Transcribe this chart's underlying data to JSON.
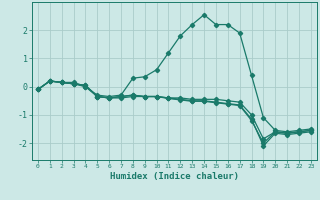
{
  "xlabel": "Humidex (Indice chaleur)",
  "ylabel": "",
  "xlim": [
    -0.5,
    23.5
  ],
  "ylim": [
    -2.6,
    3.0
  ],
  "background_color": "#cce8e6",
  "grid_color": "#aaccca",
  "line_color": "#1a7a6a",
  "lines": [
    {
      "x": [
        0,
        1,
        2,
        3,
        4,
        5,
        6,
        7,
        8,
        9,
        10,
        11,
        12,
        13,
        14,
        15,
        16,
        17,
        18,
        19,
        20,
        21,
        22,
        23
      ],
      "y": [
        -0.1,
        0.2,
        0.15,
        0.1,
        0.0,
        -0.3,
        -0.35,
        -0.3,
        0.3,
        0.35,
        0.6,
        1.2,
        1.8,
        2.2,
        2.55,
        2.2,
        2.2,
        1.9,
        0.4,
        -1.1,
        -1.55,
        -1.6,
        -1.55,
        -1.5
      ]
    },
    {
      "x": [
        0,
        1,
        2,
        3,
        4,
        5,
        6,
        7,
        8,
        9,
        10,
        11,
        12,
        13,
        14,
        15,
        16,
        17,
        18,
        19,
        20,
        21,
        22,
        23
      ],
      "y": [
        -0.1,
        0.2,
        0.15,
        0.1,
        0.05,
        -0.35,
        -0.4,
        -0.35,
        -0.3,
        -0.35,
        -0.35,
        -0.4,
        -0.45,
        -0.5,
        -0.5,
        -0.55,
        -0.6,
        -0.65,
        -1.15,
        -2.1,
        -1.65,
        -1.7,
        -1.65,
        -1.6
      ]
    },
    {
      "x": [
        0,
        1,
        2,
        3,
        4,
        5,
        6,
        7,
        8,
        9,
        10,
        11,
        12,
        13,
        14,
        15,
        16,
        17,
        18,
        19,
        20,
        21,
        22,
        23
      ],
      "y": [
        -0.1,
        0.2,
        0.15,
        0.1,
        0.05,
        -0.35,
        -0.4,
        -0.35,
        -0.3,
        -0.35,
        -0.35,
        -0.42,
        -0.47,
        -0.52,
        -0.52,
        -0.57,
        -0.62,
        -0.67,
        -1.2,
        -2.0,
        -1.6,
        -1.65,
        -1.6,
        -1.55
      ]
    },
    {
      "x": [
        0,
        1,
        2,
        3,
        4,
        5,
        6,
        7,
        8,
        9,
        10,
        11,
        12,
        13,
        14,
        15,
        16,
        17,
        18,
        19,
        20,
        21,
        22,
        23
      ],
      "y": [
        -0.1,
        0.2,
        0.15,
        0.15,
        0.0,
        -0.35,
        -0.4,
        -0.4,
        -0.35,
        -0.35,
        -0.35,
        -0.4,
        -0.4,
        -0.45,
        -0.45,
        -0.45,
        -0.5,
        -0.55,
        -1.0,
        -1.85,
        -1.6,
        -1.65,
        -1.6,
        -1.55
      ]
    }
  ],
  "yticks": [
    -2,
    -1,
    0,
    1,
    2
  ],
  "xticks": [
    0,
    1,
    2,
    3,
    4,
    5,
    6,
    7,
    8,
    9,
    10,
    11,
    12,
    13,
    14,
    15,
    16,
    17,
    18,
    19,
    20,
    21,
    22,
    23
  ]
}
